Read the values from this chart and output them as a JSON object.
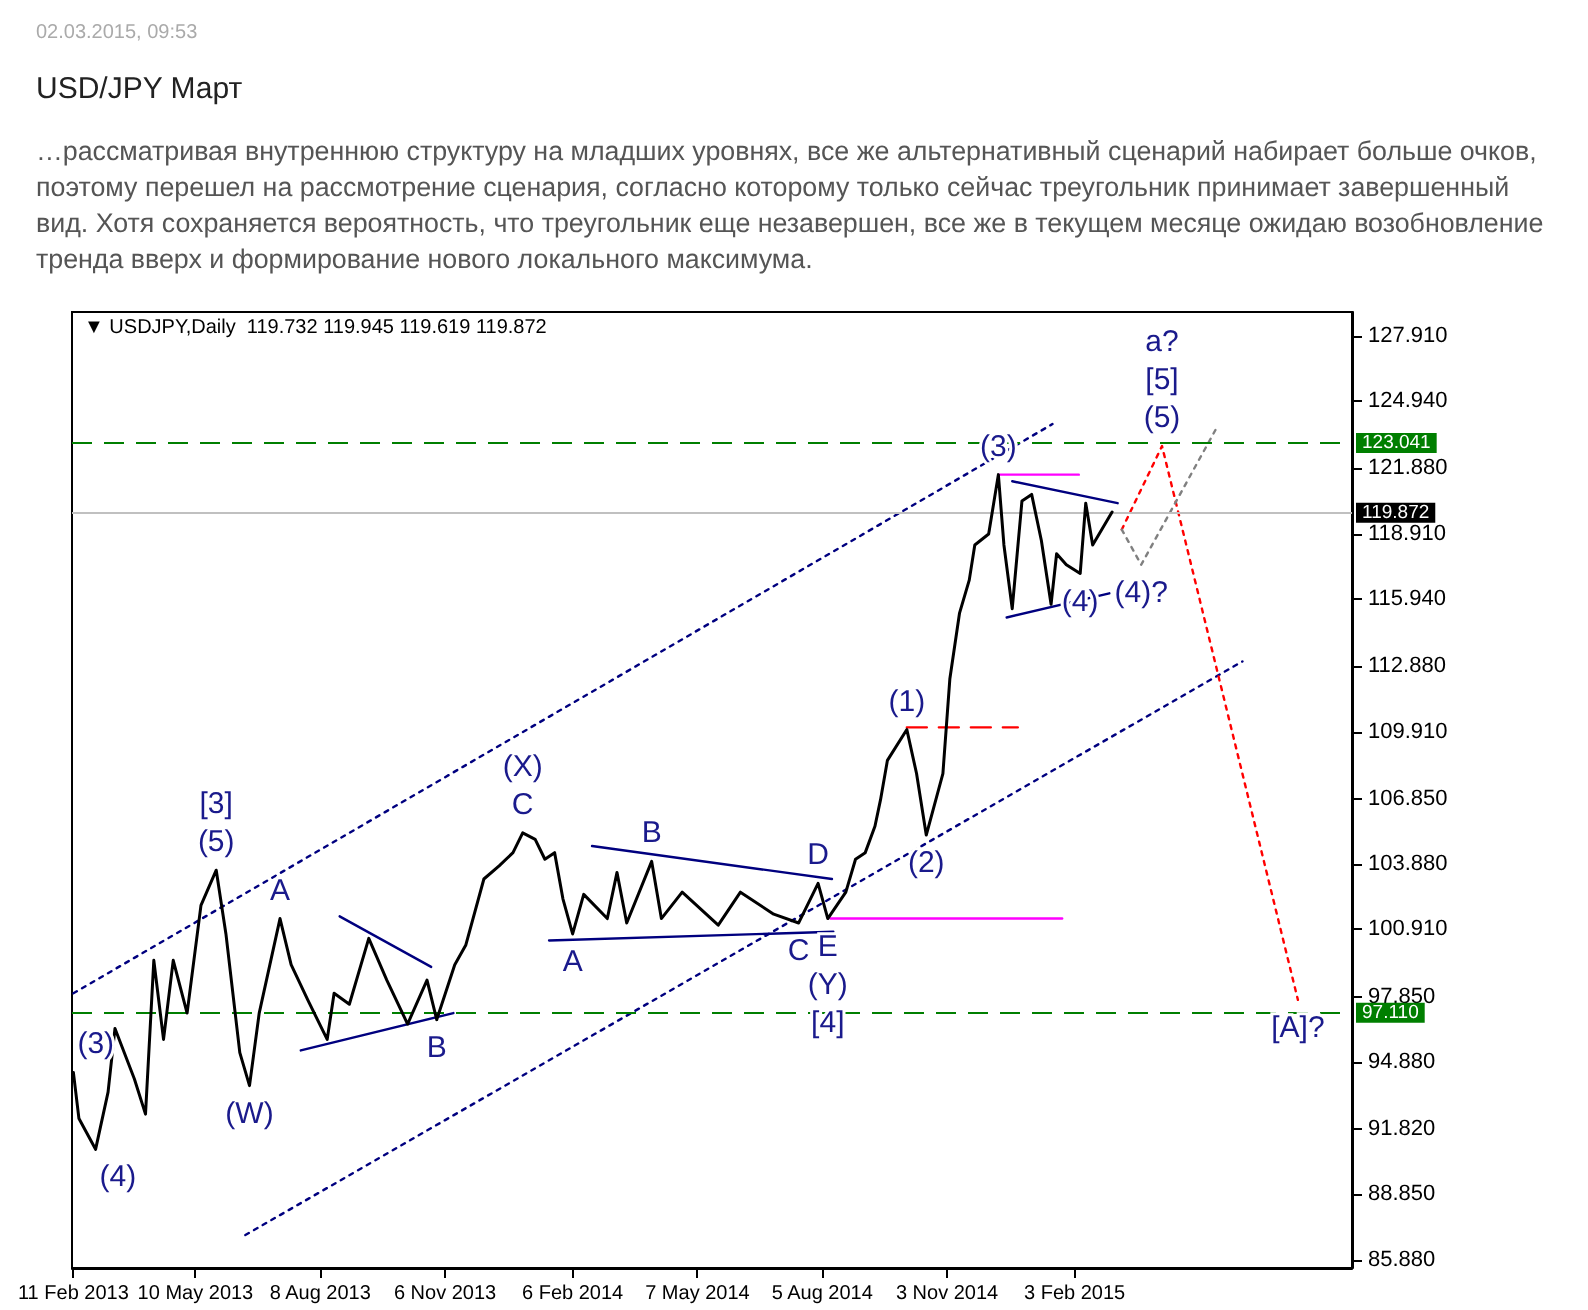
{
  "chart_data": {
    "type": "line",
    "title": "USD/JPY Март",
    "subtitle": "…рассматривая внутреннюю структуру на младших уровнях, все же альтернативный сценарий набирает больше очков, поэтому перешел на рассмотрение сценария, согласно которому только сейчас треугольник принимает завершенный вид. Хотя сохраняется вероятность, что треугольник еще незавершен, все же в текущем месяце ожидаю возобновление тренда вверх и формирование нового локального максимума.",
    "annotations": [
      "02.03.2015, 09:53",
      "▼ USDJPY,Daily  119.732 119.945 119.619 119.872",
      {
        "text": "(5)",
        "x": "2013-05-25",
        "y": 103.6
      },
      {
        "text": "[3]",
        "x": "2013-05-25",
        "y": 103.6
      },
      {
        "text": "(W)",
        "x": "2013-06-18",
        "y": 93.8
      },
      {
        "text": "(4)",
        "x": "2013-02-27",
        "y": 90.9
      },
      {
        "text": "(3)",
        "x": "2013-02-11",
        "y": 94.4
      },
      {
        "text": "A",
        "x": "2013-07-10",
        "y": 101.4
      },
      {
        "text": "B",
        "x": "2013-10-31",
        "y": 96.8
      },
      {
        "text": "C",
        "x": "2014-01-01",
        "y": 105.3
      },
      {
        "text": "(X)",
        "x": "2014-01-01",
        "y": 105.3
      },
      {
        "text": "A",
        "x": "2014-02-06",
        "y": 100.7
      },
      {
        "text": "B",
        "x": "2014-04-04",
        "y": 104.0
      },
      {
        "text": "D",
        "x": "2014-08-02",
        "y": 103.0
      },
      {
        "text": "C",
        "x": "2014-07-19",
        "y": 101.2
      },
      {
        "text": "E",
        "x": "2014-08-09",
        "y": 101.4
      },
      {
        "text": "(Y)",
        "x": "2014-08-09",
        "y": 101.4
      },
      "[4]",
      {
        "text": "(1)",
        "x": "2014-10-05",
        "y": 110.0
      },
      {
        "text": "(2)",
        "x": "2014-10-19",
        "y": 105.2
      },
      {
        "text": "(3)",
        "x": "2014-12-10",
        "y": 121.6
      },
      {
        "text": "(4)",
        "x": "2015-02-07",
        "y": 117.1
      },
      {
        "text": "(4)?",
        "x": "2015-03-23",
        "y": 117.5
      },
      {
        "text": "(5)",
        "x": "2015-04-07",
        "y": 122.9
      },
      {
        "text": "[5]",
        "x": "2015-04-07",
        "y": 122.9
      },
      "a?",
      {
        "text": "[A]?",
        "x": "2015-07-14",
        "y": 97.7
      }
    ],
    "xlim": [
      "2013-02-10",
      "2015-08-22"
    ],
    "xticks": [
      {
        "value": "2013-02-11",
        "label": "11 Feb 2013"
      },
      {
        "value": "2013-05-10",
        "label": "10 May 2013"
      },
      {
        "value": "2013-08-08",
        "label": "8 Aug 2013"
      },
      {
        "value": "2013-11-06",
        "label": "6 Nov 2013"
      },
      {
        "value": "2014-02-06",
        "label": "6 Feb 2014"
      },
      {
        "value": "2014-05-07",
        "label": "7 May 2014"
      },
      {
        "value": "2014-08-05",
        "label": "5 Aug 2014"
      },
      {
        "value": "2014-11-03",
        "label": "3 Nov 2014"
      },
      {
        "value": "2015-02-03",
        "label": "3 Feb 2015"
      }
    ],
    "ylim": [
      85.5,
      129.0
    ],
    "yticks": [
      {
        "value": 85.88,
        "label": "85.880"
      },
      {
        "value": 88.85,
        "label": "88.850"
      },
      {
        "value": 91.82,
        "label": "91.820"
      },
      {
        "value": 94.88,
        "label": "94.880"
      },
      {
        "value": 97.85,
        "label": "97.850"
      },
      {
        "value": 100.91,
        "label": "100.910"
      },
      {
        "value": 103.88,
        "label": "103.880"
      },
      {
        "value": 106.85,
        "label": "106.850"
      },
      {
        "value": 109.91,
        "label": "109.910"
      },
      {
        "value": 112.88,
        "label": "112.880"
      },
      {
        "value": 115.94,
        "label": "115.940"
      },
      {
        "value": 118.91,
        "label": "118.910"
      },
      {
        "value": 121.88,
        "label": "121.880"
      },
      {
        "value": 124.94,
        "label": "124.940"
      },
      {
        "value": 127.91,
        "label": "127.910"
      }
    ],
    "ref_lines": [
      {
        "axis": "y",
        "value": 123.041,
        "label": "123.041",
        "color": "#007f00",
        "line_style": "dashed"
      },
      {
        "axis": "y",
        "value": 97.11,
        "label": "97.110",
        "color": "#007f00",
        "line_style": "dashed"
      },
      {
        "axis": "y",
        "value": 119.872,
        "label": "119.872",
        "color": "#c0c0c0",
        "line_style": "solid"
      }
    ],
    "marker": "none",
    "series": [
      {
        "color": "#000000",
        "line_style": "solid",
        "x": [
          "2013-02-11",
          "2013-02-15",
          "2013-02-27",
          "2013-03-08",
          "2013-03-13",
          "2013-03-27",
          "2013-04-04",
          "2013-04-10",
          "2013-04-17",
          "2013-04-24",
          "2013-05-04",
          "2013-05-14",
          "2013-05-25",
          "2013-06-01",
          "2013-06-11",
          "2013-06-18",
          "2013-06-25",
          "2013-07-10",
          "2013-07-18",
          "2013-07-30",
          "2013-08-13",
          "2013-08-18",
          "2013-08-29",
          "2013-09-12",
          "2013-09-25",
          "2013-10-10",
          "2013-10-24",
          "2013-10-31",
          "2013-11-13",
          "2013-11-21",
          "2013-12-04",
          "2013-12-15",
          "2013-12-25",
          "2014-01-01",
          "2014-01-10",
          "2014-01-17",
          "2014-01-24",
          "2014-01-30",
          "2014-02-06",
          "2014-02-14",
          "2014-03-03",
          "2014-03-10",
          "2014-03-17",
          "2014-04-04",
          "2014-04-11",
          "2014-04-26",
          "2014-05-22",
          "2014-06-07",
          "2014-07-01",
          "2014-07-19",
          "2014-08-02",
          "2014-08-09",
          "2014-08-22",
          "2014-08-29",
          "2014-09-05",
          "2014-09-12",
          "2014-09-16",
          "2014-09-21",
          "2014-10-05",
          "2014-10-12",
          "2014-10-19",
          "2014-10-31",
          "2014-11-05",
          "2014-11-12",
          "2014-11-19",
          "2014-11-23",
          "2014-12-03",
          "2014-12-10",
          "2014-12-14",
          "2014-12-20",
          "2014-12-27",
          "2015-01-03",
          "2015-01-10",
          "2015-01-17",
          "2015-01-21",
          "2015-01-28",
          "2015-02-07",
          "2015-02-11",
          "2015-02-16",
          "2015-03-02"
        ],
        "values": [
          94.4,
          92.3,
          90.9,
          93.5,
          96.4,
          94.1,
          92.5,
          99.5,
          95.9,
          99.5,
          97.1,
          102.0,
          103.6,
          100.7,
          95.3,
          93.8,
          97.1,
          101.4,
          99.3,
          97.7,
          95.9,
          98.0,
          97.5,
          100.5,
          98.6,
          96.6,
          98.6,
          96.8,
          99.3,
          100.2,
          103.2,
          103.8,
          104.4,
          105.3,
          105.0,
          104.1,
          104.4,
          102.3,
          100.7,
          102.5,
          101.4,
          103.5,
          101.2,
          104.0,
          101.4,
          102.6,
          101.1,
          102.6,
          101.6,
          101.2,
          103.0,
          101.4,
          102.6,
          104.1,
          104.4,
          105.6,
          106.8,
          108.6,
          110.0,
          108.0,
          105.2,
          108.0,
          112.3,
          115.3,
          116.8,
          118.4,
          118.9,
          121.6,
          118.4,
          115.5,
          120.4,
          120.7,
          118.6,
          115.7,
          118.0,
          117.5,
          117.1,
          120.3,
          118.4,
          119.9
        ]
      },
      {
        "color": "#00007f",
        "line_style": "dotted",
        "x": [
          "2013-02-11",
          "2015-01-18"
        ],
        "values": [
          98.0,
          123.9
        ]
      },
      {
        "color": "#00007f",
        "line_style": "dotted",
        "x": [
          "2013-06-15",
          "2015-06-04"
        ],
        "values": [
          87.0,
          113.1
        ]
      },
      {
        "color": "#00007f",
        "line_style": "solid",
        "x": [
          "2013-08-22",
          "2013-10-27"
        ],
        "values": [
          101.5,
          99.2
        ]
      },
      {
        "color": "#00007f",
        "line_style": "solid",
        "x": [
          "2013-07-25",
          "2013-11-12"
        ],
        "values": [
          95.4,
          97.1
        ]
      },
      {
        "color": "#00007f",
        "line_style": "solid",
        "x": [
          "2014-02-20",
          "2014-08-12"
        ],
        "values": [
          104.7,
          103.2
        ]
      },
      {
        "color": "#00007f",
        "line_style": "solid",
        "x": [
          "2014-01-20",
          "2014-08-13"
        ],
        "values": [
          100.4,
          100.8
        ]
      },
      {
        "color": "#00007f",
        "line_style": "solid",
        "x": [
          "2014-12-20",
          "2015-03-06"
        ],
        "values": [
          121.3,
          120.3
        ]
      },
      {
        "color": "#00007f",
        "line_style": "solid",
        "x": [
          "2014-12-16",
          "2015-02-28"
        ],
        "values": [
          115.1,
          116.2
        ]
      },
      {
        "color": "#ff00ff",
        "line_style": "solid",
        "x": [
          "2014-08-11",
          "2015-01-25"
        ],
        "values": [
          101.4,
          101.4
        ]
      },
      {
        "color": "#ff00ff",
        "line_style": "solid",
        "x": [
          "2014-12-11",
          "2015-02-06"
        ],
        "values": [
          121.6,
          121.6
        ]
      },
      {
        "color": "#ff0000",
        "line_style": "dashed",
        "x": [
          "2014-10-05",
          "2014-12-24"
        ],
        "values": [
          110.1,
          110.1
        ]
      },
      {
        "color": "#ff0000",
        "line_style": "dotted",
        "x": [
          "2015-03-09",
          "2015-04-07",
          "2015-07-14"
        ],
        "values": [
          119.1,
          122.9,
          97.7
        ]
      },
      {
        "color": "#808080",
        "line_style": "dotted",
        "x": [
          "2015-03-09",
          "2015-03-23",
          "2015-05-17"
        ],
        "values": [
          119.1,
          117.5,
          123.8
        ]
      }
    ]
  }
}
